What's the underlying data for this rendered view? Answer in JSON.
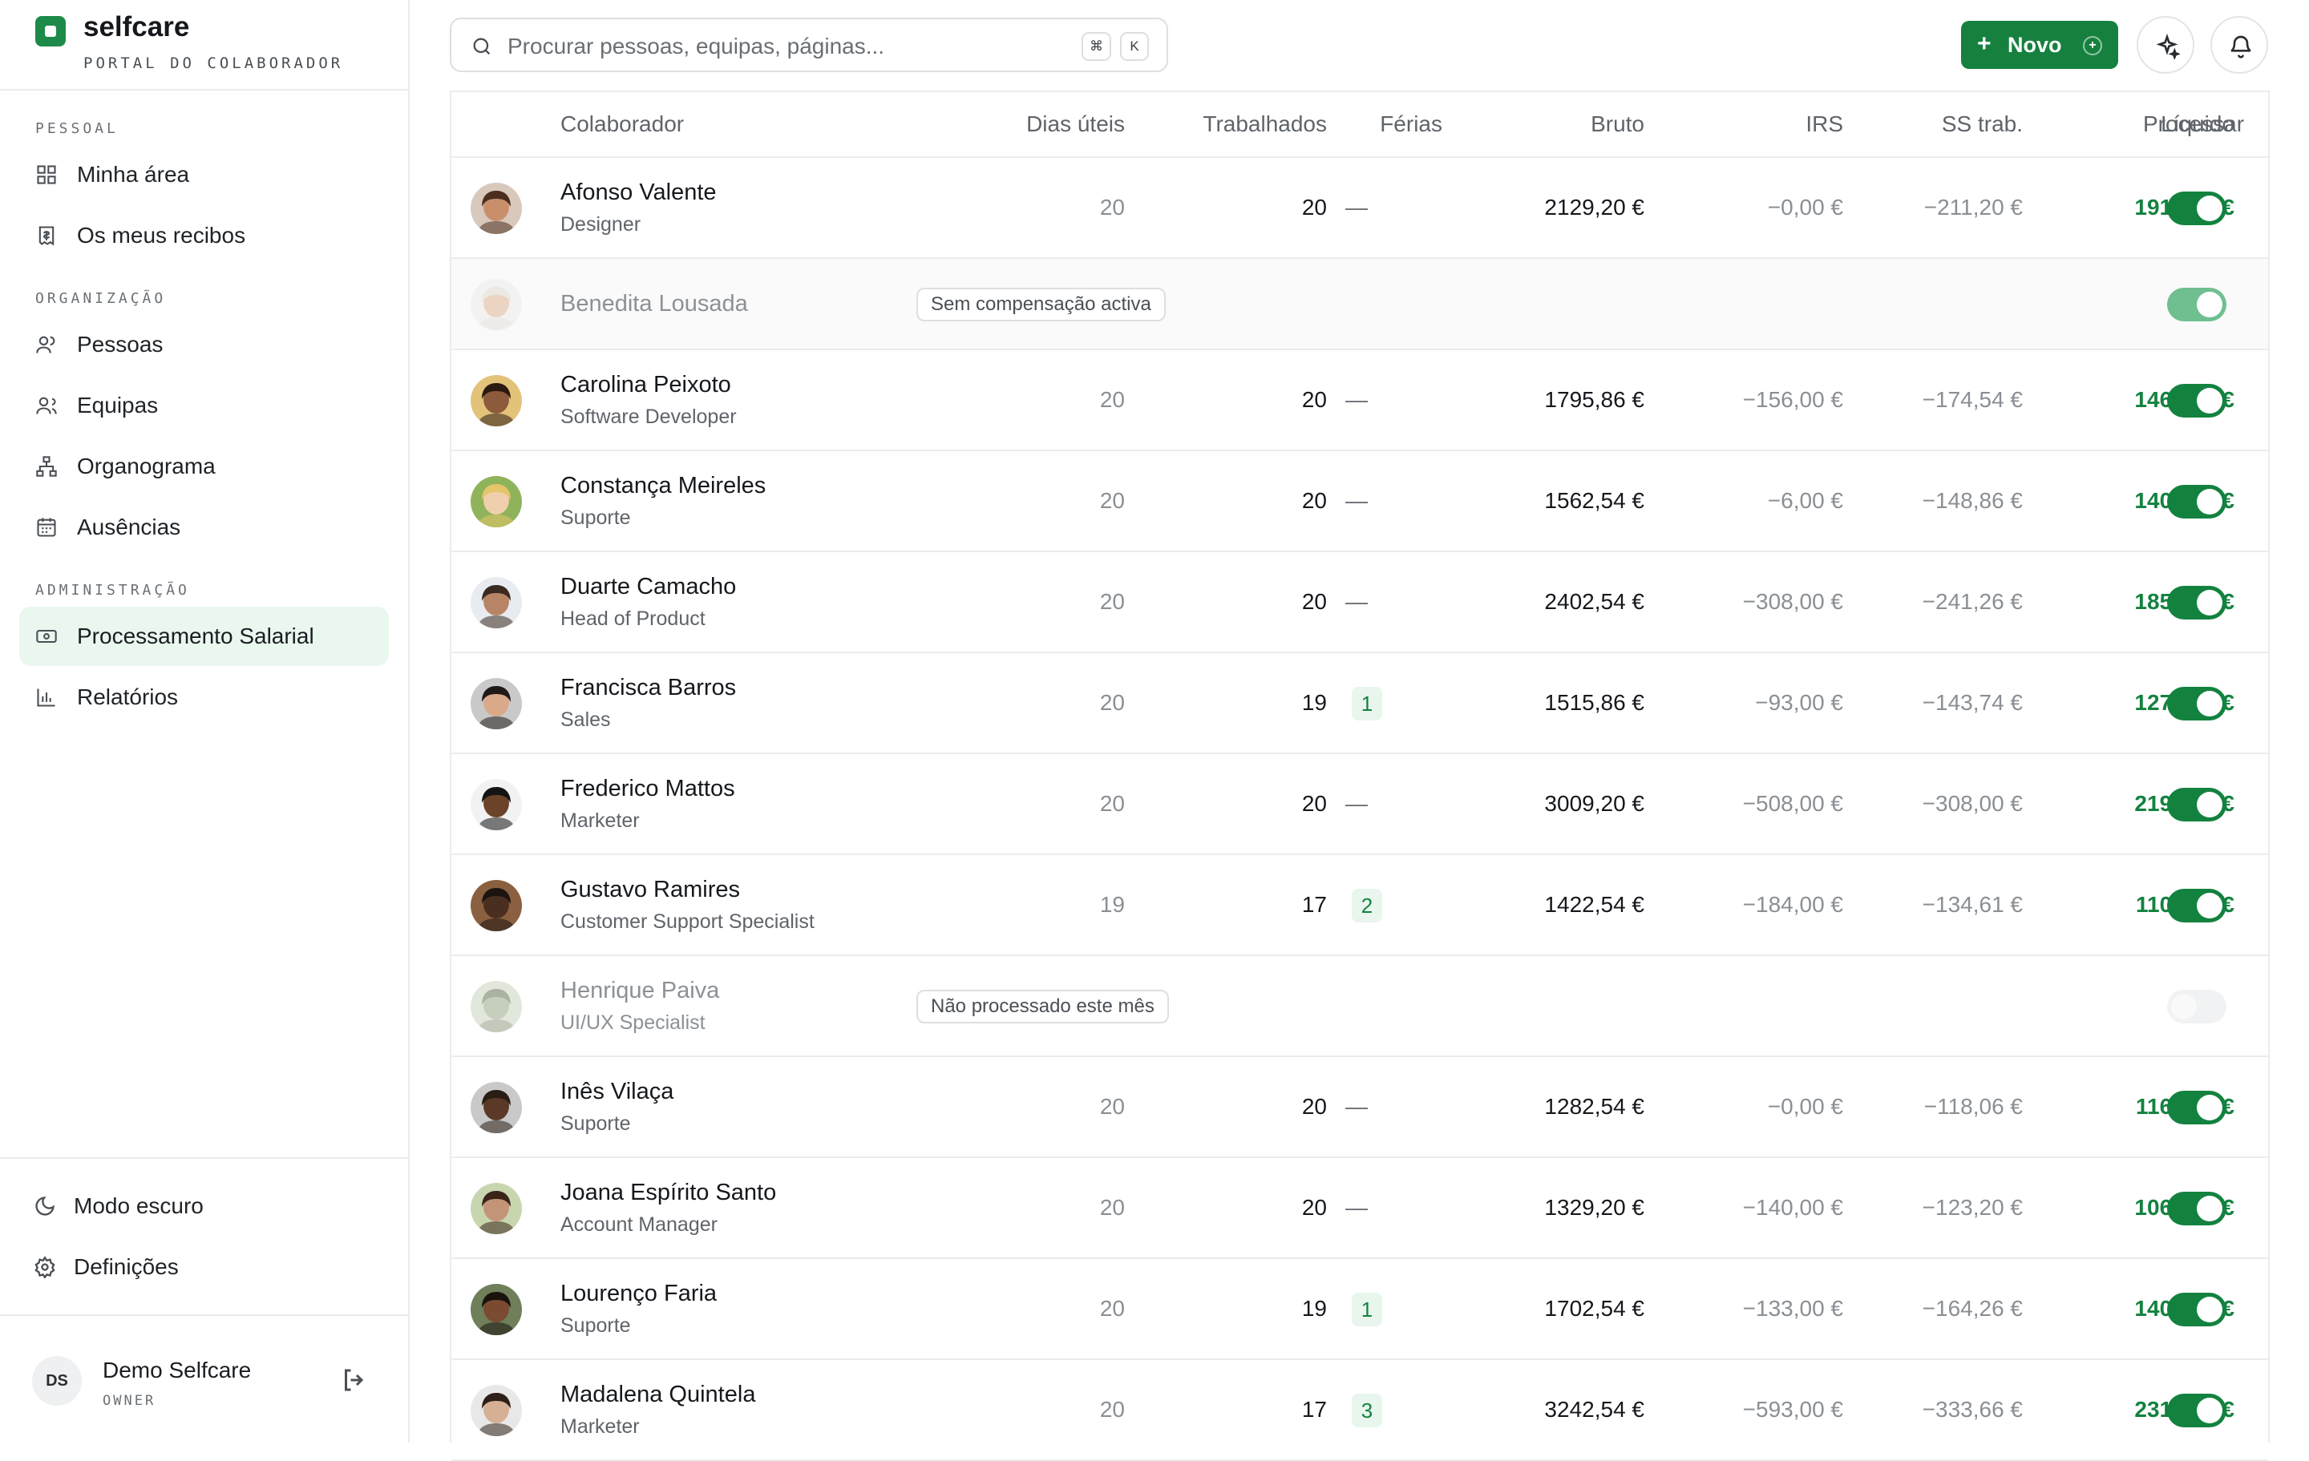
{
  "brand": {
    "name": "selfcare",
    "subtitle": "PORTAL DO COLABORADOR"
  },
  "sidebar": {
    "sections": [
      {
        "label": "PESSOAL",
        "items": [
          {
            "label": "Minha área",
            "icon": "dashboard-icon"
          },
          {
            "label": "Os meus recibos",
            "icon": "receipt-icon"
          }
        ]
      },
      {
        "label": "ORGANIZAÇÃO",
        "items": [
          {
            "label": "Pessoas",
            "icon": "user-icon"
          },
          {
            "label": "Equipas",
            "icon": "users-icon"
          },
          {
            "label": "Organograma",
            "icon": "org-chart-icon"
          },
          {
            "label": "Ausências",
            "icon": "calendar-icon"
          }
        ]
      },
      {
        "label": "ADMINISTRAÇÃO",
        "items": [
          {
            "label": "Processamento Salarial",
            "icon": "banknote-icon",
            "active": true
          },
          {
            "label": "Relatórios",
            "icon": "bar-chart-icon"
          }
        ]
      }
    ],
    "bottom": {
      "dark_mode": "Modo escuro",
      "settings": "Definições"
    },
    "user": {
      "initials": "DS",
      "name": "Demo Selfcare",
      "role": "OWNER"
    }
  },
  "topbar": {
    "search_placeholder": "Procurar pessoas, equipas, páginas...",
    "shortcut_keys": [
      "⌘",
      "K"
    ],
    "new_button": "Novo"
  },
  "table": {
    "columns": [
      "Colaborador",
      "Dias úteis",
      "Trabalhados",
      "Férias",
      "Bruto",
      "IRS",
      "SS trab.",
      "Líquido",
      "Processar"
    ],
    "rows": [
      {
        "name": "Afonso Valente",
        "role": "Designer",
        "dias": "20",
        "trab": "20",
        "ferias": "—",
        "bruto": "2129,20 €",
        "irs": "−0,00 €",
        "ss": "−211,20 €",
        "liquido": "1918,00 €",
        "processar": "on"
      },
      {
        "name": "Benedita Lousada",
        "role": "",
        "status": "Sem compensação activa",
        "processar": "disabled-on"
      },
      {
        "name": "Carolina Peixoto",
        "role": "Software Developer",
        "dias": "20",
        "trab": "20",
        "ferias": "—",
        "bruto": "1795,86 €",
        "irs": "−156,00 €",
        "ss": "−174,54 €",
        "liquido": "1465,32 €",
        "processar": "on"
      },
      {
        "name": "Constança Meireles",
        "role": "Suporte",
        "dias": "20",
        "trab": "20",
        "ferias": "—",
        "bruto": "1562,54 €",
        "irs": "−6,00 €",
        "ss": "−148,86 €",
        "liquido": "1407,68 €",
        "processar": "on"
      },
      {
        "name": "Duarte Camacho",
        "role": "Head of Product",
        "dias": "20",
        "trab": "20",
        "ferias": "—",
        "bruto": "2402,54 €",
        "irs": "−308,00 €",
        "ss": "−241,26 €",
        "liquido": "1853,28 €",
        "processar": "on"
      },
      {
        "name": "Francisca Barros",
        "role": "Sales",
        "dias": "20",
        "trab": "19",
        "ferias": "1",
        "bruto": "1515,86 €",
        "irs": "−93,00 €",
        "ss": "−143,74 €",
        "liquido": "1279,12 €",
        "processar": "on"
      },
      {
        "name": "Frederico Mattos",
        "role": "Marketer",
        "dias": "20",
        "trab": "20",
        "ferias": "—",
        "bruto": "3009,20 €",
        "irs": "−508,00 €",
        "ss": "−308,00 €",
        "liquido": "2193,20 €",
        "processar": "on"
      },
      {
        "name": "Gustavo Ramires",
        "role": "Customer Support Specialist",
        "dias": "19",
        "trab": "17",
        "ferias": "2",
        "bruto": "1422,54 €",
        "irs": "−184,00 €",
        "ss": "−134,61 €",
        "liquido": "1103,93 €",
        "processar": "on"
      },
      {
        "name": "Henrique Paiva",
        "role": "UI/UX Specialist",
        "status": "Não processado este mês",
        "processar": "off"
      },
      {
        "name": "Inês Vilaça",
        "role": "Suporte",
        "dias": "20",
        "trab": "20",
        "ferias": "—",
        "bruto": "1282,54 €",
        "irs": "−0,00 €",
        "ss": "−118,06 €",
        "liquido": "1164,48 €",
        "processar": "on"
      },
      {
        "name": "Joana Espírito Santo",
        "role": "Account Manager",
        "dias": "20",
        "trab": "20",
        "ferias": "—",
        "bruto": "1329,20 €",
        "irs": "−140,00 €",
        "ss": "−123,20 €",
        "liquido": "1066,00 €",
        "processar": "on"
      },
      {
        "name": "Lourenço Faria",
        "role": "Suporte",
        "dias": "20",
        "trab": "19",
        "ferias": "1",
        "bruto": "1702,54 €",
        "irs": "−133,00 €",
        "ss": "−164,26 €",
        "liquido": "1405,28 €",
        "processar": "on"
      },
      {
        "name": "Madalena Quintela",
        "role": "Marketer",
        "dias": "20",
        "trab": "17",
        "ferias": "3",
        "bruto": "3242,54 €",
        "irs": "−593,00 €",
        "ss": "−333,66 €",
        "liquido": "2315,88 €",
        "processar": "on"
      }
    ]
  },
  "colors": {
    "accent": "#13823f",
    "accent_light": "#eaf7ef",
    "border": "#ececec"
  }
}
